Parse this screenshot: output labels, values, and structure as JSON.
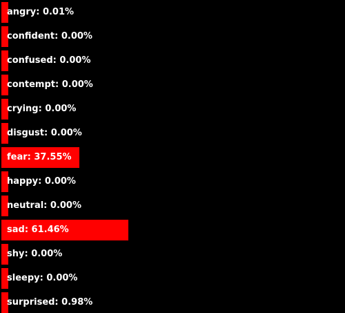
{
  "chart_data": {
    "type": "bar",
    "orientation": "horizontal",
    "unit": "%",
    "bar_color": "#ff0000",
    "background_color": "#000000",
    "label_color": "#ffffff",
    "xlim": [
      0,
      100
    ],
    "grid": false,
    "categories": [
      "angry",
      "confident",
      "confused",
      "contempt",
      "crying",
      "disgust",
      "fear",
      "happy",
      "neutral",
      "sad",
      "shy",
      "sleepy",
      "surprised"
    ],
    "values": [
      0.01,
      0.0,
      0.0,
      0.0,
      0.0,
      0.0,
      37.55,
      0.0,
      0.0,
      61.46,
      0.0,
      0.0,
      0.98
    ],
    "labels": [
      "angry: 0.01%",
      "confident: 0.00%",
      "confused: 0.00%",
      "contempt: 0.00%",
      "crying: 0.00%",
      "disgust: 0.00%",
      "fear: 37.55%",
      "happy: 0.00%",
      "neutral: 0.00%",
      "sad: 61.46%",
      "shy: 0.00%",
      "sleepy: 0.00%",
      "surprised: 0.98%"
    ]
  }
}
